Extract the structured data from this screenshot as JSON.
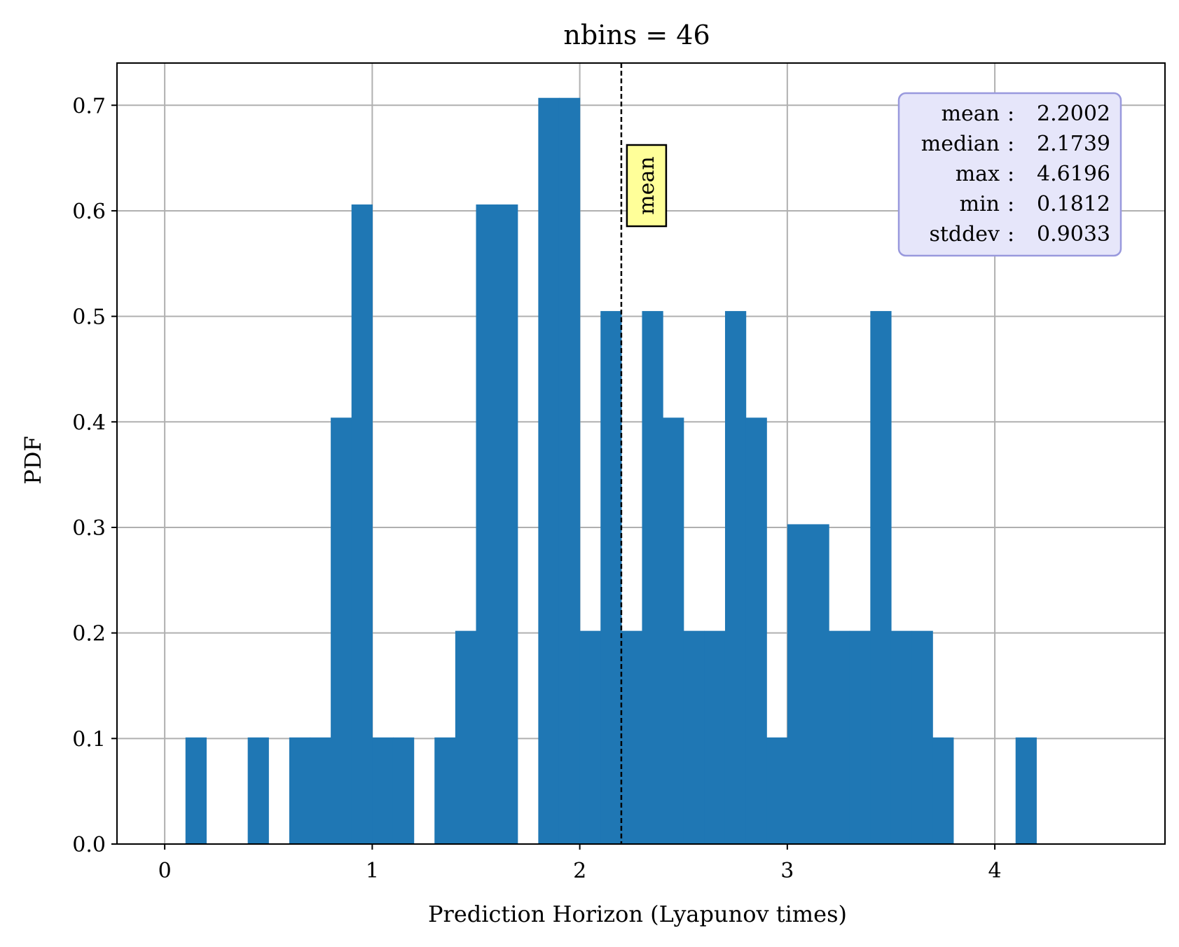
{
  "chart_data": {
    "type": "bar",
    "title": "nbins = 46",
    "xlabel": "Prediction Horizon (Lyapunov times)",
    "ylabel": "PDF",
    "xlim": [
      -0.23,
      4.82
    ],
    "ylim": [
      0.0,
      0.74
    ],
    "xticks": [
      0,
      1,
      2,
      3,
      4
    ],
    "yticks": [
      0.0,
      0.1,
      0.2,
      0.3,
      0.4,
      0.5,
      0.6,
      0.7
    ],
    "xtick_labels": [
      "0",
      "1",
      "2",
      "3",
      "4"
    ],
    "ytick_labels": [
      "0.0",
      "0.1",
      "0.2",
      "0.3",
      "0.4",
      "0.5",
      "0.6",
      "0.7"
    ],
    "grid": true,
    "bin_width": 0.1,
    "bars": [
      {
        "x": 0.1,
        "height": 0.101
      },
      {
        "x": 0.4,
        "height": 0.101
      },
      {
        "x": 0.6,
        "height": 0.101
      },
      {
        "x": 0.7,
        "height": 0.101
      },
      {
        "x": 0.8,
        "height": 0.404
      },
      {
        "x": 0.9,
        "height": 0.606
      },
      {
        "x": 1.0,
        "height": 0.101
      },
      {
        "x": 1.1,
        "height": 0.101
      },
      {
        "x": 1.3,
        "height": 0.101
      },
      {
        "x": 1.4,
        "height": 0.202
      },
      {
        "x": 1.5,
        "height": 0.606
      },
      {
        "x": 1.6,
        "height": 0.606
      },
      {
        "x": 1.8,
        "height": 0.707
      },
      {
        "x": 1.9,
        "height": 0.707
      },
      {
        "x": 2.0,
        "height": 0.202
      },
      {
        "x": 2.1,
        "height": 0.505
      },
      {
        "x": 2.2,
        "height": 0.202
      },
      {
        "x": 2.3,
        "height": 0.505
      },
      {
        "x": 2.4,
        "height": 0.404
      },
      {
        "x": 2.5,
        "height": 0.202
      },
      {
        "x": 2.6,
        "height": 0.202
      },
      {
        "x": 2.7,
        "height": 0.505
      },
      {
        "x": 2.8,
        "height": 0.404
      },
      {
        "x": 2.9,
        "height": 0.101
      },
      {
        "x": 3.0,
        "height": 0.303
      },
      {
        "x": 3.1,
        "height": 0.303
      },
      {
        "x": 3.2,
        "height": 0.202
      },
      {
        "x": 3.3,
        "height": 0.202
      },
      {
        "x": 3.4,
        "height": 0.505
      },
      {
        "x": 3.5,
        "height": 0.202
      },
      {
        "x": 3.6,
        "height": 0.202
      },
      {
        "x": 3.7,
        "height": 0.101
      },
      {
        "x": 4.1,
        "height": 0.101
      }
    ],
    "mean_line": {
      "x": 2.2002,
      "label": "mean"
    },
    "stats": [
      {
        "label": "mean",
        "value": "2.2002"
      },
      {
        "label": "median",
        "value": "2.1739"
      },
      {
        "label": "max",
        "value": "4.6196"
      },
      {
        "label": "min",
        "value": "0.1812"
      },
      {
        "label": "stddev",
        "value": "0.9033"
      }
    ],
    "colors": {
      "bar": "#1f77b4",
      "grid": "#b0b0b0",
      "mean_line": "#000000",
      "mean_label_bg": "#ffff99",
      "stats_bg": "#e6e6fa",
      "stats_border": "#9999dd"
    }
  }
}
